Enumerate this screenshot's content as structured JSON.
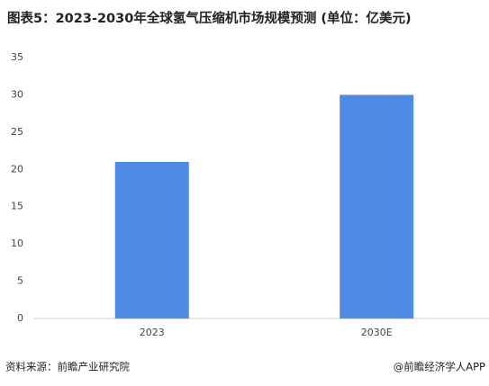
{
  "chart_data": {
    "type": "bar",
    "title": "图表5：2023-2030年全球氢气压缩机市场规模预测 (单位：亿美元)",
    "categories": [
      "2023",
      "2030E"
    ],
    "values": [
      21,
      30
    ],
    "color": "#4e8ae6",
    "ylim": [
      0,
      35
    ],
    "yticks": [
      0,
      5,
      10,
      15,
      20,
      25,
      30,
      35
    ],
    "grid": false
  },
  "footer": {
    "source": "资料来源：前瞻产业研究院",
    "credit": "@前瞻经济学人APP"
  }
}
